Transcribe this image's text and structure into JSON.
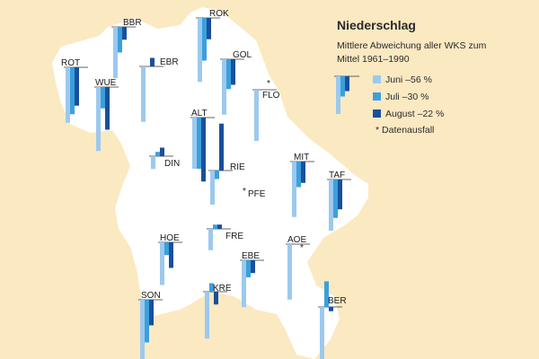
{
  "colors": {
    "background": "#fbe9c2",
    "region": "#ffffff",
    "june": "#9cc9ef",
    "july": "#3aa0dc",
    "august": "#1a4f9c",
    "baseline": "#333333"
  },
  "legend": {
    "title": "Niederschlag",
    "subtitle": "Mittlere Abweichung aller WKS zum Mittel 1961–1990",
    "items": [
      {
        "label": "Juni –56 %",
        "color": "#9cc9ef"
      },
      {
        "label": "Juli –30 %",
        "color": "#3aa0dc"
      },
      {
        "label": "August –22 %",
        "color": "#1a4f9c"
      }
    ],
    "missing_note": "Datenausfall",
    "missing_marker": "*"
  },
  "stations": [
    {
      "code": "BBR",
      "values": [
        -60,
        -30,
        -15
      ],
      "missing": false
    },
    {
      "code": "ROK",
      "values": [
        -75,
        -50,
        -25
      ],
      "missing": false
    },
    {
      "code": "ROT",
      "values": [
        -65,
        -55,
        -45
      ],
      "missing": false
    },
    {
      "code": "WUE",
      "values": [
        -75,
        -25,
        -50
      ],
      "missing": false
    },
    {
      "code": "EBR",
      "values": [
        -65,
        null,
        10
      ],
      "missing": false
    },
    {
      "code": "GOL",
      "values": [
        -65,
        -35,
        -30
      ],
      "missing": false
    },
    {
      "code": "FLO",
      "values": [
        -60,
        null,
        null
      ],
      "missing": true
    },
    {
      "code": "ALT",
      "values": [
        -60,
        -60,
        -75
      ],
      "missing": false
    },
    {
      "code": "DIN",
      "values": [
        -15,
        5,
        10
      ],
      "missing": false
    },
    {
      "code": "RIE",
      "values": [
        -40,
        -10,
        55
      ],
      "missing": false
    },
    {
      "code": "PFE",
      "values": [
        null,
        null,
        null
      ],
      "missing": true
    },
    {
      "code": "MIT",
      "values": [
        -65,
        -30,
        -25
      ],
      "missing": false
    },
    {
      "code": "TAF",
      "values": [
        -60,
        -45,
        -35
      ],
      "missing": false
    },
    {
      "code": "HOE",
      "values": [
        -50,
        -15,
        -30
      ],
      "missing": false
    },
    {
      "code": "FRE",
      "values": [
        -25,
        5,
        5
      ],
      "missing": false
    },
    {
      "code": "EBE",
      "values": [
        -55,
        -20,
        -15
      ],
      "missing": false
    },
    {
      "code": "AOE",
      "values": [
        -65,
        null,
        null
      ],
      "missing": true
    },
    {
      "code": "SON",
      "values": [
        -70,
        -50,
        -30
      ],
      "missing": false
    },
    {
      "code": "KRE",
      "values": [
        -55,
        10,
        -15
      ],
      "missing": false
    },
    {
      "code": "BER",
      "values": [
        -80,
        30,
        -5
      ],
      "missing": false
    }
  ]
}
